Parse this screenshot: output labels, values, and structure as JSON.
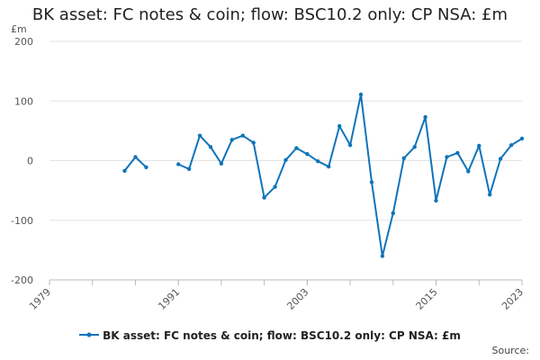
{
  "chart_data": {
    "type": "line",
    "title": "BK asset: FC notes & coin; flow: BSC10.2 only: CP NSA: £m",
    "ylabel": "£m",
    "xlabel": "",
    "xlim": [
      1979,
      2023
    ],
    "ylim": [
      -200,
      200
    ],
    "x_ticks": [
      1979,
      1991,
      2003,
      2015,
      2023
    ],
    "y_ticks": [
      -200,
      -100,
      0,
      100,
      200
    ],
    "grid": true,
    "legend_position": "bottom",
    "color": "#0f74ba",
    "series": [
      {
        "name": "BK asset: FC notes & coin; flow: BSC10.2 only: CP NSA: £m",
        "x": [
          1986,
          1987,
          1988,
          1989,
          1990,
          1991,
          1992,
          1993,
          1994,
          1995,
          1996,
          1997,
          1998,
          1999,
          2000,
          2001,
          2002,
          2003,
          2004,
          2005,
          2006,
          2007,
          2008,
          2009,
          2010,
          2011,
          2012,
          2013,
          2014,
          2015,
          2016,
          2017,
          2018,
          2019,
          2020,
          2021,
          2022,
          2023
        ],
        "values": [
          -17,
          6,
          -11,
          null,
          null,
          -6,
          -14,
          42,
          23,
          -5,
          35,
          42,
          30,
          -62,
          -44,
          1,
          21,
          11,
          -1,
          -10,
          58,
          26,
          111,
          -36,
          -160,
          -88,
          4,
          23,
          73,
          -67,
          6,
          13,
          -18,
          25,
          -57,
          3,
          26,
          37
        ]
      }
    ]
  },
  "footer": {
    "source_label": "Source:"
  }
}
